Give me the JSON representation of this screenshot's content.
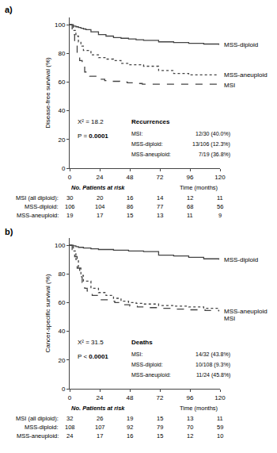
{
  "chart_data": [
    {
      "type": "line",
      "title": "a)",
      "ylabel": "Disease-free survival (%)",
      "xlabel": "Time (months)",
      "xlim": [
        0,
        120
      ],
      "ylim": [
        0,
        105
      ],
      "xticks": [
        0,
        24,
        48,
        72,
        96,
        120
      ],
      "yticks": [
        0,
        20,
        40,
        60,
        80,
        100
      ],
      "grid": false,
      "series": [
        {
          "name": "MSS-diploid",
          "color": "#444444",
          "line_style": "solid",
          "x": [
            0,
            3,
            5,
            7,
            9,
            11,
            13,
            17,
            23,
            29,
            35,
            41,
            47,
            53,
            59,
            71,
            83,
            95,
            107,
            119
          ],
          "values": [
            100,
            99,
            98.5,
            98,
            97.5,
            97,
            96.5,
            95,
            93,
            92,
            91,
            90.5,
            90,
            89.5,
            89,
            88,
            87.5,
            87,
            86.5,
            86
          ]
        },
        {
          "name": "MSS-aneuploid",
          "color": "#444444",
          "line_style": "dot",
          "x": [
            0,
            3,
            5,
            7,
            9,
            11,
            17,
            23,
            29,
            35,
            41,
            47,
            59,
            71,
            83,
            95,
            107,
            119
          ],
          "values": [
            100,
            96,
            92,
            88,
            85,
            82,
            79,
            77,
            76,
            75,
            73,
            72,
            71,
            68,
            66,
            65,
            65,
            65
          ]
        },
        {
          "name": "MSI",
          "color": "#444444",
          "line_style": "dash",
          "x": [
            0,
            2,
            4,
            6,
            8,
            10,
            12,
            16,
            22,
            28,
            34,
            40,
            46,
            52,
            58,
            119
          ],
          "values": [
            100,
            93,
            87,
            80,
            75,
            71,
            67,
            64,
            62,
            61,
            60.5,
            60,
            59.5,
            59,
            58.5,
            58
          ]
        }
      ],
      "annotations": {
        "chi2": "X² = 18.2",
        "p_label": "P = ",
        "p_value": "0.0001",
        "box_title": "Recurrences",
        "box_lines": [
          [
            "MSI:",
            "12/30 (40.0%)"
          ],
          [
            "MSS-diploid:",
            "13/106 (12.3%)"
          ],
          [
            "MSS-aneuploid:",
            "7/19 (36.8%)"
          ]
        ]
      },
      "at_risk": {
        "header": "No. Patients at risk",
        "rows": [
          {
            "label": "MSI (all diploid):",
            "values": [
              30,
              20,
              16,
              14,
              12,
              11
            ]
          },
          {
            "label": "MSS-diploid:",
            "values": [
              106,
              104,
              86,
              77,
              68,
              56
            ]
          },
          {
            "label": "MSS-aneuploid:",
            "values": [
              19,
              17,
              15,
              13,
              11,
              9
            ]
          }
        ]
      }
    },
    {
      "type": "line",
      "title": "b)",
      "ylabel": "Cancer-specific survival (%)",
      "xlabel": "Time (months)",
      "xlim": [
        0,
        120
      ],
      "ylim": [
        0,
        105
      ],
      "xticks": [
        0,
        24,
        48,
        72,
        96,
        120
      ],
      "yticks": [
        0,
        20,
        40,
        60,
        80,
        100
      ],
      "grid": false,
      "series": [
        {
          "name": "MSS-diploid",
          "color": "#444444",
          "line_style": "solid",
          "x": [
            0,
            3,
            5,
            7,
            11,
            17,
            23,
            35,
            47,
            59,
            71,
            83,
            95,
            107,
            119
          ],
          "values": [
            100,
            99.5,
            99,
            98.5,
            98,
            97.5,
            97,
            96.5,
            96,
            95.5,
            93,
            92.5,
            91.5,
            90.5,
            90
          ]
        },
        {
          "name": "MSS-aneuploid",
          "color": "#444444",
          "line_style": "dot",
          "x": [
            0,
            3,
            5,
            7,
            9,
            11,
            17,
            23,
            29,
            35,
            41,
            47,
            53,
            59,
            71,
            83,
            95,
            107,
            119
          ],
          "values": [
            100,
            96,
            90,
            84,
            79,
            75,
            70,
            67,
            65,
            63,
            61,
            60,
            59.5,
            59,
            58,
            57.5,
            57,
            56,
            54
          ]
        },
        {
          "name": "MSI",
          "color": "#444444",
          "line_style": "dash",
          "x": [
            0,
            2,
            4,
            6,
            8,
            10,
            12,
            14,
            18,
            24,
            30,
            36,
            42,
            48,
            54,
            60,
            72,
            84,
            96,
            108,
            119
          ],
          "values": [
            100,
            97,
            92,
            84,
            78,
            74,
            70,
            68,
            65,
            62,
            61,
            60,
            58.5,
            57.5,
            57,
            56.5,
            56,
            55.5,
            55,
            54.5,
            54
          ]
        }
      ],
      "annotations": {
        "chi2": "X² = 31.5",
        "p_label": "P < ",
        "p_value": "0.0001",
        "box_title": "Deaths",
        "box_lines": [
          [
            "MSI:",
            "14/32 (43.8%)"
          ],
          [
            "MSS-diploid:",
            "10/108 (9.3%)"
          ],
          [
            "MSS-aneuploid:",
            "11/24 (45.8%)"
          ]
        ]
      },
      "at_risk": {
        "header": "No. Patients at risk",
        "rows": [
          {
            "label": "MSI (all diploid):",
            "values": [
              32,
              26,
              19,
              15,
              13,
              11
            ]
          },
          {
            "label": "MSS-diploid:",
            "values": [
              108,
              107,
              92,
              79,
              70,
              59
            ]
          },
          {
            "label": "MSS-aneuploid:",
            "values": [
              24,
              17,
              16,
              15,
              12,
              10
            ]
          }
        ]
      }
    }
  ]
}
